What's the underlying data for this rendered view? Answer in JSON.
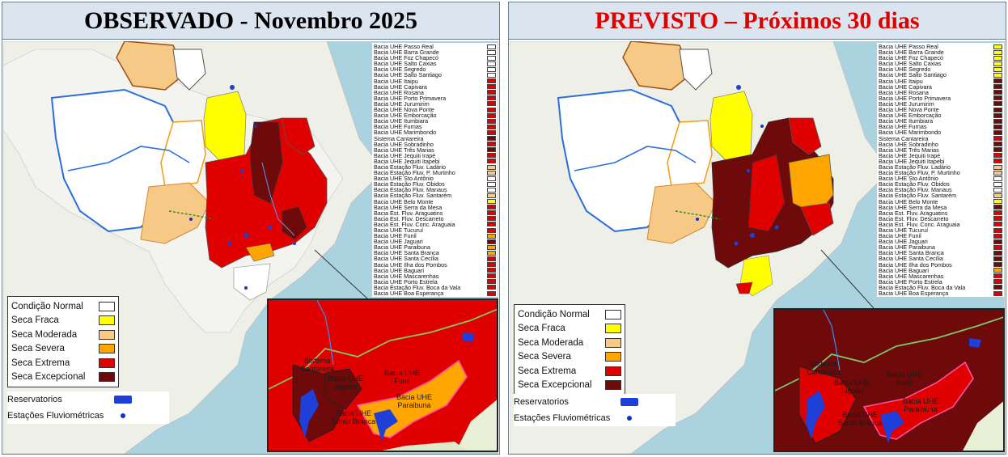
{
  "panels": {
    "left": {
      "title": "OBSERVADO - Novembro 2025",
      "title_color": "#000000"
    },
    "right": {
      "title": "PREVISTO – Próximos 30 dias",
      "title_color": "#e00000"
    }
  },
  "condition_legend": [
    {
      "label": "Condição Normal",
      "color": "#ffffff"
    },
    {
      "label": "Seca Fraca",
      "color": "#ffff00"
    },
    {
      "label": "Seca Moderada",
      "color": "#f7c987"
    },
    {
      "label": "Seca Severa",
      "color": "#ffa500"
    },
    {
      "label": "Seca Extrema",
      "color": "#e00000"
    },
    {
      "label": "Seca Excepcional",
      "color": "#6e0a0a"
    }
  ],
  "symbol_legend": {
    "reservoirs": "Reservatorios",
    "stations": "Estações Fluviométricas"
  },
  "basins": [
    "Bacia UHE Passo Real",
    "Bacia UHE Barra Grande",
    "Bacia UHE Foz Chapecó",
    "Bacia UHE Salto Caxias",
    "Bacia UHE Segredo",
    "Bacia UHE Salto Santiago",
    "Bacia UHE Itaipu",
    "Bacia UHE Capivara",
    "Bacia UHE Rosana",
    "Bacia UHE Porto Primavera",
    "Bacia UHE Jurumirim",
    "Bacia UHE Nova Ponte",
    "Bacia UHE Emborcação",
    "Bacia UHE Itumbiara",
    "Bacia UHE Furnas",
    "Bacia UHE Marimbondo",
    "Sistema Cantareira",
    "Bacia UHE Sobradinho",
    "Bacia UHE Três Marias",
    "Bacia UHE Jequiti Irapé",
    "Bacia UHE Jequiti Itapebi",
    "Bacia Estação Fluv. Ladário",
    "Bacia Estação Fluv. P. Murtinho",
    "Bacia UHE Sto Antônio",
    "Bacia Estação Fluv. Obidos",
    "Bacia Estação Fluv. Manaus",
    "Bacia Estação Fluv. Santarém",
    "Bacia UHE Belo Monte",
    "Bacia UHE Serra da Mesa",
    "Bacia Est. Fluv. Araguatins",
    "Bacia Est. Fluv. Descarreto",
    "Bacia Est. Fluv. Conc. Araguaia",
    "Bacia UHE Tucuruí",
    "Bacia UHE Funil",
    "Bacia UHE Jaguari",
    "Bacia UHE Paraibuna",
    "Bacia UHE Santa Branca",
    "Bacia UHE Santa Cecília",
    "Bacia UHE Ilha dos Pombos",
    "Bacia UHE Baguari",
    "Bacia UHE Mascarenhas",
    "Bacia UHE Porto Estrela",
    "Bacia Estação Fluv. Boca da Vala",
    "Bacia UHE Boa Esperança"
  ],
  "basin_colors_left": [
    "#ffffff",
    "#ffffff",
    "#ffffff",
    "#ffffff",
    "#ffffff",
    "#ffffff",
    "#e00000",
    "#e00000",
    "#e00000",
    "#e00000",
    "#e00000",
    "#e00000",
    "#e00000",
    "#e00000",
    "#e00000",
    "#e00000",
    "#6e0a0a",
    "#e00000",
    "#6e0a0a",
    "#e00000",
    "#e00000",
    "#f7c987",
    "#f7c987",
    "#ffffff",
    "#ffffff",
    "#ffffff",
    "#f7c987",
    "#ffff00",
    "#e00000",
    "#e00000",
    "#e00000",
    "#e00000",
    "#e00000",
    "#ffa500",
    "#6e0a0a",
    "#ffa500",
    "#ffa500",
    "#e00000",
    "#e00000",
    "#e00000",
    "#e00000",
    "#e00000",
    "#e00000",
    "#e00000"
  ],
  "basin_colors_right": [
    "#ffff00",
    "#ffff00",
    "#ffff00",
    "#ffff00",
    "#ffff00",
    "#ffff00",
    "#6e0a0a",
    "#6e0a0a",
    "#6e0a0a",
    "#6e0a0a",
    "#6e0a0a",
    "#6e0a0a",
    "#6e0a0a",
    "#6e0a0a",
    "#6e0a0a",
    "#6e0a0a",
    "#e00000",
    "#6e0a0a",
    "#6e0a0a",
    "#e00000",
    "#e00000",
    "#f7c987",
    "#f7c987",
    "#ffffff",
    "#ffffff",
    "#ffffff",
    "#f7c987",
    "#ffff00",
    "#6e0a0a",
    "#e00000",
    "#e00000",
    "#e00000",
    "#e00000",
    "#e00000",
    "#6e0a0a",
    "#e00000",
    "#6e0a0a",
    "#6e0a0a",
    "#6e0a0a",
    "#ffa500",
    "#e00000",
    "#e00000",
    "#6e0a0a",
    "#e00000"
  ],
  "inset_labels": {
    "cantareira": "Sistema\nCantareira",
    "jaguari": "Bacia UHE\nJaguari",
    "funil": "Bacia UHE\nFunil",
    "paraibuna": "Bacia UHE\nParaibuna",
    "santa_branca": "Bacia UHE\nSanta Branca"
  }
}
